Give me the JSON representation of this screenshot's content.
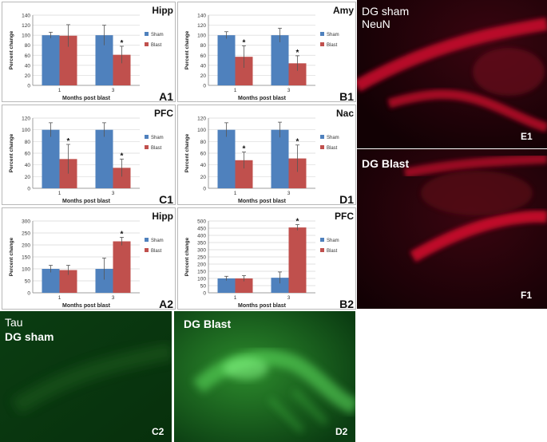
{
  "charts": [
    {
      "id": "A1",
      "region": "Hipp",
      "ymax": 140,
      "ystep": 20,
      "sham": [
        100,
        100
      ],
      "blast": [
        99,
        61
      ],
      "sham_err": [
        6,
        20
      ],
      "blast_err": [
        22,
        17
      ],
      "star": [
        false,
        true
      ]
    },
    {
      "id": "B1",
      "region": "Amy",
      "ymax": 140,
      "ystep": 20,
      "sham": [
        100,
        100
      ],
      "blast": [
        57,
        44
      ],
      "sham_err": [
        7,
        14
      ],
      "blast_err": [
        22,
        15
      ],
      "star": [
        true,
        true
      ]
    },
    {
      "id": "C1",
      "region": "PFC",
      "ymax": 120,
      "ystep": 20,
      "sham": [
        100,
        100
      ],
      "blast": [
        50,
        35
      ],
      "sham_err": [
        12,
        12
      ],
      "blast_err": [
        25,
        15
      ],
      "star": [
        true,
        true
      ]
    },
    {
      "id": "D1",
      "region": "Nac",
      "ymax": 120,
      "ystep": 20,
      "sham": [
        100,
        100
      ],
      "blast": [
        48,
        51
      ],
      "sham_err": [
        12,
        13
      ],
      "blast_err": [
        14,
        23
      ],
      "star": [
        true,
        true
      ]
    },
    {
      "id": "A2",
      "region": "Hipp",
      "ymax": 300,
      "ystep": 50,
      "sham": [
        100,
        100
      ],
      "blast": [
        95,
        215
      ],
      "sham_err": [
        15,
        45
      ],
      "blast_err": [
        20,
        17
      ],
      "star": [
        false,
        true
      ]
    },
    {
      "id": "B2",
      "region": "PFC",
      "ymax": 500,
      "ystep": 50,
      "sham": [
        100,
        105
      ],
      "blast": [
        100,
        455
      ],
      "sham_err": [
        15,
        40
      ],
      "blast_err": [
        20,
        20
      ],
      "star": [
        false,
        true
      ]
    }
  ],
  "chart_data": [
    {
      "type": "bar",
      "title": "Hipp",
      "xlabel": "Months post blast",
      "ylabel": "Percent change",
      "categories": [
        "1",
        "3"
      ],
      "ylim": [
        0,
        140
      ],
      "series": [
        {
          "name": "Sham",
          "values": [
            100,
            100
          ]
        },
        {
          "name": "Blast",
          "values": [
            99,
            61
          ]
        }
      ],
      "annotations": [
        "*"
      ],
      "panel": "A1",
      "legend": "right"
    },
    {
      "type": "bar",
      "title": "Amy",
      "xlabel": "Months post blast",
      "ylabel": "Percent change",
      "categories": [
        "1",
        "3"
      ],
      "ylim": [
        0,
        140
      ],
      "series": [
        {
          "name": "Sham",
          "values": [
            100,
            100
          ]
        },
        {
          "name": "Blast",
          "values": [
            57,
            44
          ]
        }
      ],
      "annotations": [
        "*",
        "*"
      ],
      "panel": "B1",
      "legend": "right"
    },
    {
      "type": "bar",
      "title": "PFC",
      "xlabel": "Months post blast",
      "ylabel": "Percent change",
      "categories": [
        "1",
        "3"
      ],
      "ylim": [
        0,
        120
      ],
      "series": [
        {
          "name": "Sham",
          "values": [
            100,
            100
          ]
        },
        {
          "name": "Blast",
          "values": [
            50,
            35
          ]
        }
      ],
      "annotations": [
        "*",
        "*"
      ],
      "panel": "C1",
      "legend": "right"
    },
    {
      "type": "bar",
      "title": "Nac",
      "xlabel": "",
      "ylabel": "Percent change",
      "categories": [
        "1",
        "3"
      ],
      "ylim": [
        0,
        120
      ],
      "series": [
        {
          "name": "Sham",
          "values": [
            100,
            100
          ]
        },
        {
          "name": "Blast",
          "values": [
            48,
            51
          ]
        }
      ],
      "annotations": [
        "*",
        "*"
      ],
      "panel": "D1",
      "legend": "right"
    },
    {
      "type": "bar",
      "title": "Hipp",
      "xlabel": "Months post blast",
      "ylabel": "Percent change",
      "categories": [
        "1",
        "3"
      ],
      "ylim": [
        0,
        300
      ],
      "series": [
        {
          "name": "Sham",
          "values": [
            100,
            100
          ]
        },
        {
          "name": "Blast",
          "values": [
            95,
            215
          ]
        }
      ],
      "annotations": [
        "*"
      ],
      "panel": "A2",
      "legend": "right"
    },
    {
      "type": "bar",
      "title": "PFC",
      "xlabel": "Months post blast",
      "ylabel": "Percent change",
      "categories": [
        "1",
        "3"
      ],
      "ylim": [
        0,
        500
      ],
      "series": [
        {
          "name": "Sham",
          "values": [
            100,
            105
          ]
        },
        {
          "name": "Blast",
          "values": [
            100,
            455
          ]
        }
      ],
      "annotations": [
        "*"
      ],
      "panel": "B2",
      "legend": "right"
    }
  ],
  "labels": {
    "xlabel": "Months post blast",
    "ylabel": "Percent change",
    "sham": "Sham",
    "blast": "Blast",
    "star": "*",
    "categories": [
      "1",
      "3"
    ]
  },
  "micro": {
    "E1": {
      "line1": "DG sham",
      "line2": "NeuN",
      "tag": "E1"
    },
    "F1": {
      "line1": "DG Blast",
      "tag": "F1"
    },
    "C2": {
      "line1": "Tau",
      "line2": "DG sham",
      "tag": "C2"
    },
    "D2": {
      "line1": "DG Blast",
      "tag": "D2"
    }
  },
  "colors": {
    "sham": "#4f81bd",
    "blast": "#c0504d",
    "neun": "#ff1a3c",
    "tau": "#4cff4c"
  }
}
